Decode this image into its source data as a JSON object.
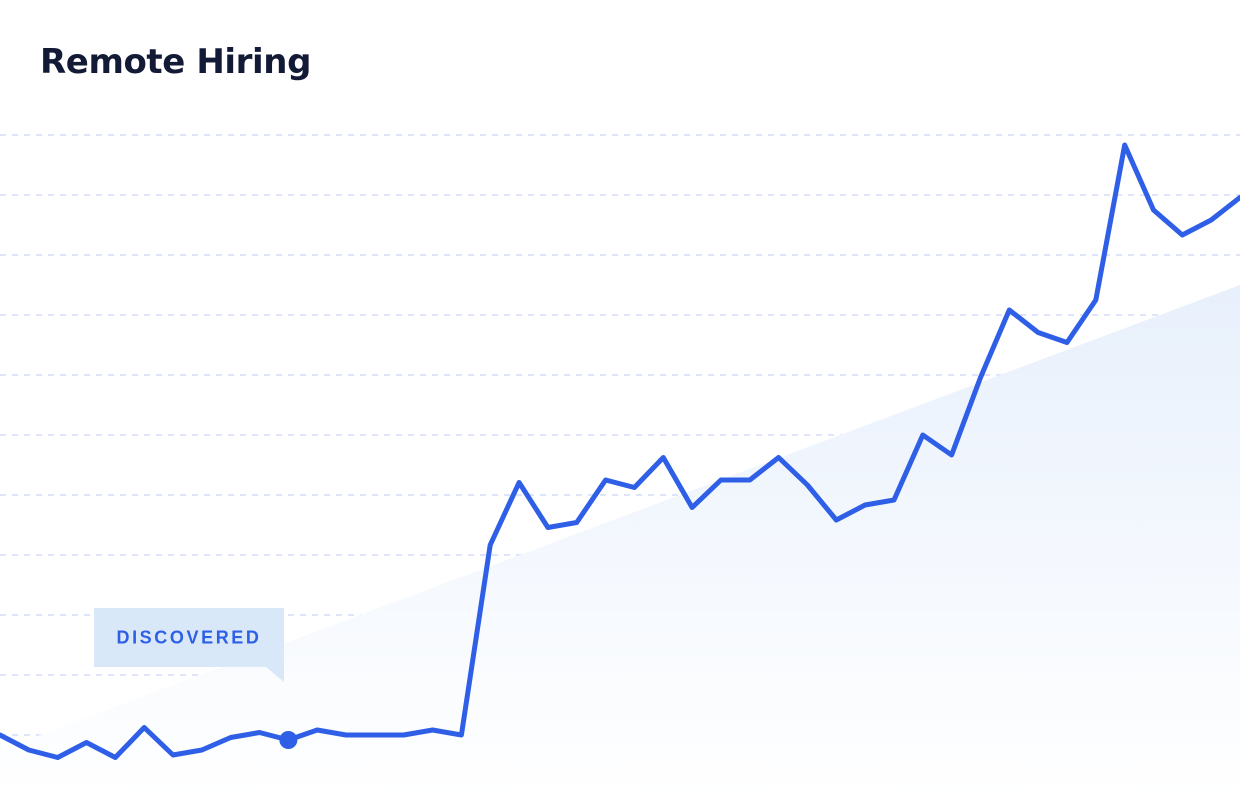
{
  "colors": {
    "title": "#131a36",
    "line": "#2e5fe6",
    "grid": "#d4dcf7",
    "area_top": "#e8f0fc",
    "area_bottom": "#ffffff",
    "callout_bg": "#d8e8f9",
    "callout_text": "#2e5fe6",
    "point": "#2e5fe6"
  },
  "chart_data": {
    "type": "line",
    "title": "Remote Hiring",
    "x_index": [
      0,
      1,
      2,
      3,
      4,
      5,
      6,
      7,
      8,
      9,
      10,
      11,
      12,
      13,
      14,
      15,
      16,
      17,
      18,
      19,
      20,
      21,
      22,
      23,
      24,
      25,
      26,
      27,
      28,
      29,
      30,
      31,
      32,
      33,
      34,
      35,
      36,
      37,
      38,
      39,
      40,
      41,
      42,
      43
    ],
    "series": [
      {
        "values": [
          8.0,
          7.4,
          7.1,
          7.7,
          7.1,
          8.3,
          7.2,
          7.4,
          7.9,
          8.1,
          7.8,
          8.2,
          8.0,
          8.0,
          8.0,
          8.2,
          8.0,
          15.6,
          18.1,
          16.3,
          16.5,
          18.2,
          17.9,
          19.1,
          17.1,
          18.2,
          18.2,
          19.1,
          18.0,
          16.6,
          17.2,
          17.4,
          20.0,
          19.2,
          22.3,
          25.0,
          24.1,
          23.7,
          25.4,
          31.6,
          29.0,
          28.0,
          28.6,
          29.5
        ]
      }
    ],
    "trend_area": {
      "start": 7.4,
      "end": 26.0
    },
    "ylim": [
      5,
      33
    ],
    "grid": true,
    "highlight": {
      "index": 10,
      "label": "DISCOVERED"
    }
  }
}
